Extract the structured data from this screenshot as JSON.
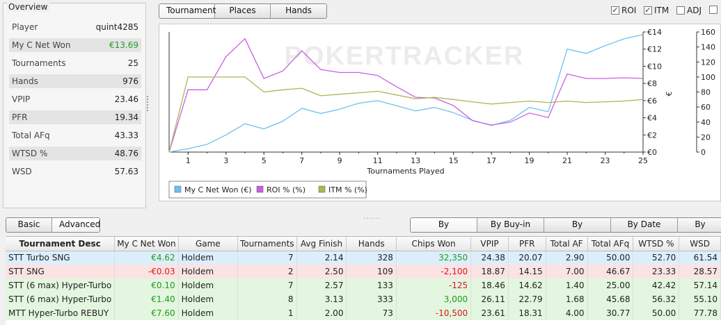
{
  "overview": {
    "title": "Overview",
    "rows": [
      {
        "label": "Player",
        "value": "quint4285"
      },
      {
        "label": "My C Net Won",
        "value": "€13.69"
      },
      {
        "label": "Tournaments",
        "value": "25"
      },
      {
        "label": "Hands",
        "value": "976"
      },
      {
        "label": "VPIP",
        "value": "23.46"
      },
      {
        "label": "PFR",
        "value": "19.34"
      },
      {
        "label": "Total AFq",
        "value": "43.33"
      },
      {
        "label": "WTSD %",
        "value": "48.76"
      },
      {
        "label": "WSD",
        "value": "57.63"
      }
    ]
  },
  "top_tabs": [
    "Tournament",
    "Places",
    "Hands"
  ],
  "checkboxes": [
    {
      "label": "ROI",
      "checked": true
    },
    {
      "label": "ITM",
      "checked": true
    },
    {
      "label": "ADJ",
      "checked": false
    },
    {
      "label": "",
      "checked": false
    }
  ],
  "chart_data": {
    "type": "line",
    "watermark": "POKERTRACKER",
    "xlabel": "Tournaments Played",
    "x": [
      0,
      1,
      2,
      3,
      4,
      5,
      6,
      7,
      8,
      9,
      10,
      11,
      12,
      13,
      14,
      15,
      16,
      17,
      18,
      19,
      20,
      21,
      22,
      23,
      24,
      25
    ],
    "x_ticks": [
      "1",
      "3",
      "5",
      "7",
      "9",
      "11",
      "13",
      "15",
      "17",
      "19",
      "21",
      "23",
      "25"
    ],
    "left_axis_ticks": [
      "€14",
      "€12",
      "€10",
      "€8",
      "€6",
      "€4",
      "€2",
      "€0"
    ],
    "left_axis_unit": "€",
    "left_ylim": [
      0,
      14
    ],
    "right_axis_ticks": [
      "160",
      "140",
      "120",
      "100",
      "80",
      "60",
      "40",
      "20",
      "0"
    ],
    "right_ylim": [
      0,
      160
    ],
    "series": [
      {
        "name": "My C Net Won (€)",
        "color": "#6ec0ec",
        "axis": "left",
        "values": [
          0,
          0.4,
          0.9,
          2.0,
          3.3,
          2.7,
          3.6,
          5.1,
          4.5,
          5.0,
          5.7,
          6.0,
          5.4,
          4.8,
          5.2,
          4.6,
          3.7,
          3.1,
          3.7,
          5.2,
          4.7,
          12.0,
          11.5,
          12.4,
          13.2,
          13.69
        ]
      },
      {
        "name": "ROI % (%)",
        "color": "#c760e3",
        "axis": "right",
        "values": [
          0,
          83,
          83,
          127,
          151,
          98,
          108,
          135,
          110,
          106,
          106,
          102,
          87,
          73,
          72,
          62,
          42,
          36,
          40,
          52,
          46,
          104,
          98,
          98,
          99,
          98
        ]
      },
      {
        "name": "ITM % (%)",
        "color": "#b0b454",
        "axis": "right",
        "values": [
          0,
          100,
          100,
          100,
          100,
          80,
          83,
          85,
          75,
          77,
          79,
          81,
          76,
          71,
          73,
          70,
          67,
          64,
          66,
          68,
          66,
          68,
          66,
          67,
          68,
          70
        ]
      }
    ]
  },
  "view_tabs": [
    "Basic",
    "Advanced"
  ],
  "sort_tabs": [
    "By Description",
    "By Buy-in",
    "By Tournament",
    "By Date",
    "By Positi"
  ],
  "table": {
    "headers": [
      "Tournament Desc",
      "My C Net Won",
      "Game",
      "Tournaments",
      "Avg Finish",
      "Hands",
      "Chips Won",
      "VPIP",
      "PFR",
      "Total AF",
      "Total AFq",
      "WTSD %",
      "WSD"
    ],
    "rows": [
      {
        "style": "blue",
        "cells": [
          "STT Turbo SNG",
          "€4.62",
          "Holdem",
          "7",
          "2.14",
          "328",
          "32,350",
          "24.38",
          "20.07",
          "2.90",
          "50.00",
          "52.70",
          "61.54"
        ],
        "net_sign": "pos",
        "chips_sign": "pos"
      },
      {
        "style": "pink",
        "cells": [
          "STT SNG",
          "-€0.03",
          "Holdem",
          "2",
          "2.50",
          "109",
          "-2,100",
          "18.87",
          "14.15",
          "7.00",
          "46.67",
          "23.33",
          "28.57"
        ],
        "net_sign": "neg",
        "chips_sign": "neg"
      },
      {
        "style": "green",
        "cells": [
          "STT (6 max) Hyper-Turbo",
          "€0.10",
          "Holdem",
          "7",
          "2.57",
          "133",
          "-125",
          "18.46",
          "14.62",
          "1.40",
          "25.00",
          "42.42",
          "57.14"
        ],
        "net_sign": "pos",
        "chips_sign": "neg"
      },
      {
        "style": "green",
        "cells": [
          "STT (6 max) Hyper-Turbo",
          "€1.40",
          "Holdem",
          "8",
          "3.13",
          "333",
          "3,000",
          "26.11",
          "22.79",
          "1.68",
          "45.68",
          "56.32",
          "55.10"
        ],
        "net_sign": "pos",
        "chips_sign": "pos"
      },
      {
        "style": "green",
        "cells": [
          "MTT Hyper-Turbo REBUY",
          "€7.60",
          "Holdem",
          "1",
          "2.00",
          "73",
          "-10,500",
          "23.61",
          "18.31",
          "4.00",
          "30.77",
          "50.00",
          "77.78"
        ],
        "net_sign": "pos",
        "chips_sign": "neg"
      }
    ]
  }
}
